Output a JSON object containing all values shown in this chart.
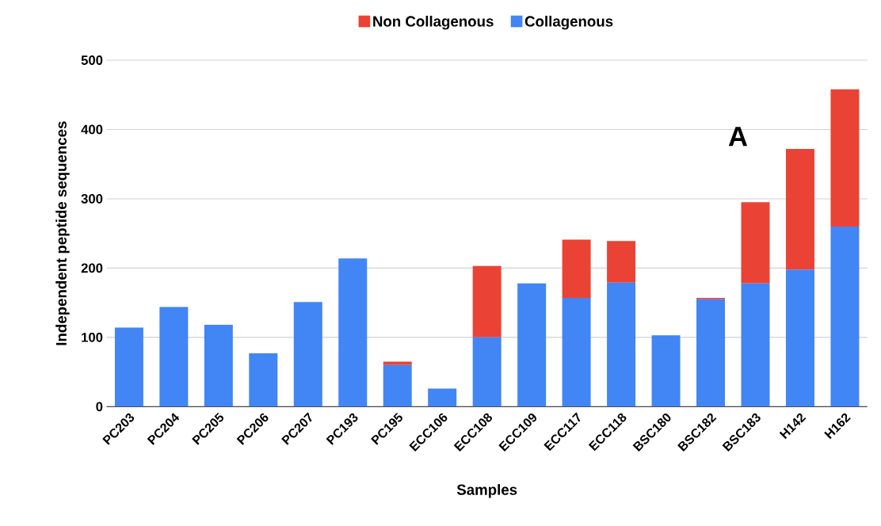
{
  "chart_data": {
    "type": "bar",
    "stacked": true,
    "xlabel": "Samples",
    "ylabel": "Independent peptide sequences",
    "categories": [
      "PC203",
      "PC204",
      "PC205",
      "PC206",
      "PC207",
      "PC193",
      "PC195",
      "ECC106",
      "ECC108",
      "ECC109",
      "ECC117",
      "ECC118",
      "BSC180",
      "BSC182",
      "BSC183",
      "H142",
      "H162"
    ],
    "series": [
      {
        "name": "Collagenous",
        "color": "#4285f4",
        "values": [
          114,
          144,
          118,
          77,
          151,
          214,
          60,
          26,
          100,
          178,
          157,
          179,
          103,
          155,
          178,
          198,
          260
        ]
      },
      {
        "name": "Non Collagenous",
        "color": "#ea4335",
        "values": [
          0,
          0,
          0,
          0,
          0,
          0,
          5,
          0,
          103,
          0,
          84,
          60,
          0,
          2,
          117,
          174,
          198
        ]
      }
    ],
    "ylim": [
      0,
      500
    ],
    "yticks": [
      0,
      100,
      200,
      300,
      400,
      500
    ],
    "grid": "y",
    "legend": "top",
    "annotations": [
      "A"
    ]
  }
}
